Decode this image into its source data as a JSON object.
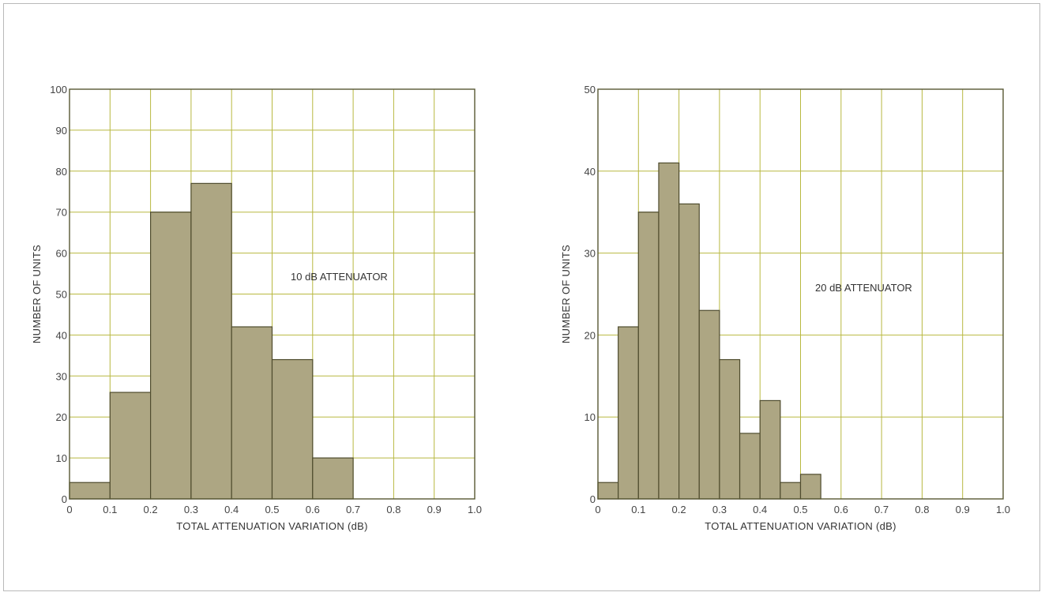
{
  "colors": {
    "bar_fill": "#ada683",
    "bar_stroke": "#4f4c2e",
    "grid": "#b8b840",
    "frame": "#575733"
  },
  "chart_data": [
    {
      "type": "bar",
      "xlabel": "TOTAL ATTENUATION VARIATION (dB)",
      "ylabel": "NUMBER OF UNITS",
      "annotation": "10 dB ATTENUATOR",
      "xlim": [
        0,
        1.0
      ],
      "ylim": [
        0,
        100
      ],
      "x_ticks": [
        "0",
        "0.1",
        "0.2",
        "0.3",
        "0.4",
        "0.5",
        "0.6",
        "0.7",
        "0.8",
        "0.9",
        "1.0"
      ],
      "y_ticks": [
        "0",
        "10",
        "20",
        "30",
        "40",
        "50",
        "60",
        "70",
        "80",
        "90",
        "100"
      ],
      "grid": true,
      "bin_width": 0.1,
      "bins": [
        {
          "x0": 0.0,
          "value": 4
        },
        {
          "x0": 0.1,
          "value": 26
        },
        {
          "x0": 0.2,
          "value": 70
        },
        {
          "x0": 0.3,
          "value": 77
        },
        {
          "x0": 0.4,
          "value": 42
        },
        {
          "x0": 0.5,
          "value": 34
        },
        {
          "x0": 0.6,
          "value": 10
        }
      ]
    },
    {
      "type": "bar",
      "xlabel": "TOTAL ATTENUATION VARIATION (dB)",
      "ylabel": "NUMBER OF UNITS",
      "annotation": "20 dB ATTENUATOR",
      "xlim": [
        0,
        1.0
      ],
      "ylim": [
        0,
        50
      ],
      "x_ticks": [
        "0",
        "0.1",
        "0.2",
        "0.3",
        "0.4",
        "0.5",
        "0.6",
        "0.7",
        "0.8",
        "0.9",
        "1.0"
      ],
      "y_ticks": [
        "0",
        "10",
        "20",
        "30",
        "40",
        "50"
      ],
      "grid": true,
      "bin_width": 0.05,
      "bins": [
        {
          "x0": 0.0,
          "value": 2
        },
        {
          "x0": 0.05,
          "value": 21
        },
        {
          "x0": 0.1,
          "value": 35
        },
        {
          "x0": 0.15,
          "value": 41
        },
        {
          "x0": 0.2,
          "value": 36
        },
        {
          "x0": 0.25,
          "value": 23
        },
        {
          "x0": 0.3,
          "value": 17
        },
        {
          "x0": 0.35,
          "value": 8
        },
        {
          "x0": 0.4,
          "value": 12
        },
        {
          "x0": 0.45,
          "value": 2
        },
        {
          "x0": 0.5,
          "value": 3
        }
      ]
    }
  ]
}
